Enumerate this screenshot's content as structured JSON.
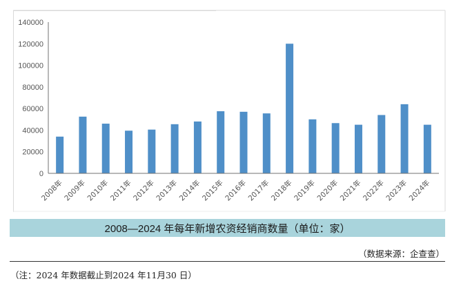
{
  "chart_data": {
    "type": "bar",
    "title": "2008—2024 年每年新增农资经销商数量（单位：家）",
    "xlabel": "",
    "ylabel": "",
    "ylim": [
      0,
      140000
    ],
    "yticks": [
      0,
      20000,
      40000,
      60000,
      80000,
      100000,
      120000,
      140000
    ],
    "grid": false,
    "legend": null,
    "categories": [
      "2008年",
      "2009年",
      "2010年",
      "2011年",
      "2012年",
      "2013年",
      "2014年",
      "2015年",
      "2016年",
      "2017年",
      "2018年",
      "2019年",
      "2020年",
      "2021年",
      "2022年",
      "2023年",
      "2024年"
    ],
    "series": [
      {
        "name": "新增农资经销商数量",
        "color": "#4f8fc8",
        "values": [
          34000,
          52500,
          46000,
          39500,
          40500,
          45500,
          48000,
          57500,
          57000,
          55500,
          120000,
          50000,
          46500,
          45000,
          54000,
          64000,
          45000
        ]
      }
    ]
  },
  "caption": {
    "title": "2008—2024 年每年新增农资经销商数量（单位：家）",
    "title_bg": "#a9d4dc",
    "source": "（数据来源：企查查）",
    "note": "（注：2024 年数据截止到2024 年11月30 日）"
  }
}
